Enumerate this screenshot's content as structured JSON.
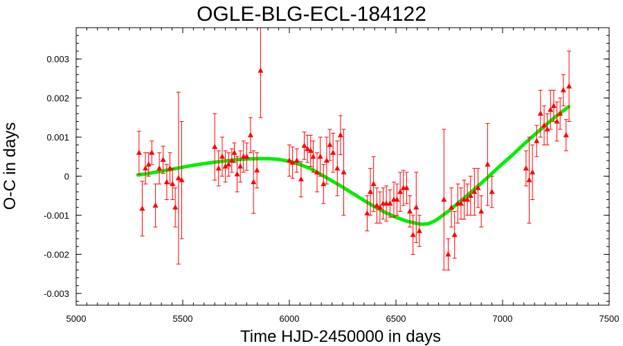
{
  "chart_data": {
    "type": "scatter",
    "title": "OGLE-BLG-ECL-184122",
    "xlabel": "Time HJD-2450000 in days",
    "ylabel": "O-C in days",
    "xlim": [
      5000,
      7500
    ],
    "ylim": [
      -0.0033,
      0.0038
    ],
    "xticks": [
      5000,
      5500,
      6000,
      6500,
      7000,
      7500
    ],
    "xtick_labels": [
      "5000",
      "5500",
      "6000",
      "6500",
      "7000",
      "7500"
    ],
    "yticks": [
      -0.003,
      -0.002,
      -0.001,
      0,
      0.001,
      0.002,
      0.003
    ],
    "ytick_labels": [
      "-0.003",
      "-0.002",
      "-0.001",
      "0",
      "0.001",
      "0.002",
      "0.003"
    ],
    "grid": false,
    "point_color": "#ff0000",
    "fit_color": "#00ee00",
    "points": [
      {
        "x": 5295,
        "y": 0.0006,
        "err": 0.00055
      },
      {
        "x": 5310,
        "y": -0.00083,
        "err": 0.0007
      },
      {
        "x": 5325,
        "y": 0.0002,
        "err": 0.0004
      },
      {
        "x": 5340,
        "y": 0.0003,
        "err": 0.0003
      },
      {
        "x": 5355,
        "y": 0.0006,
        "err": 0.0003
      },
      {
        "x": 5372,
        "y": -0.00075,
        "err": 0.00055
      },
      {
        "x": 5390,
        "y": 0.0002,
        "err": 0.0004
      },
      {
        "x": 5408,
        "y": 0.00042,
        "err": 0.00035
      },
      {
        "x": 5425,
        "y": -0.00015,
        "err": 0.00045
      },
      {
        "x": 5440,
        "y": 0.0002,
        "err": 0.0004
      },
      {
        "x": 5452,
        "y": -0.0002,
        "err": 0.0004
      },
      {
        "x": 5465,
        "y": -0.0008,
        "err": 0.0005
      },
      {
        "x": 5480,
        "y": -5e-05,
        "err": 0.0022
      },
      {
        "x": 5495,
        "y": -0.0001,
        "err": 0.0015
      },
      {
        "x": 5650,
        "y": 0.00075,
        "err": 0.00085
      },
      {
        "x": 5668,
        "y": 0.0002,
        "err": 0.00045
      },
      {
        "x": 5685,
        "y": 0.0005,
        "err": 0.0005
      },
      {
        "x": 5700,
        "y": 0.00025,
        "err": 0.0004
      },
      {
        "x": 5715,
        "y": 0.0003,
        "err": 0.0003
      },
      {
        "x": 5730,
        "y": 0.0004,
        "err": 0.0003
      },
      {
        "x": 5742,
        "y": 0.0006,
        "err": 0.00025
      },
      {
        "x": 5755,
        "y": 5e-05,
        "err": 0.00045
      },
      {
        "x": 5770,
        "y": 0.00025,
        "err": 0.0004
      },
      {
        "x": 5785,
        "y": 0.0005,
        "err": 0.0004
      },
      {
        "x": 5800,
        "y": 0.0005,
        "err": 0.00035
      },
      {
        "x": 5818,
        "y": 0.00105,
        "err": 0.00045
      },
      {
        "x": 5832,
        "y": -0.00015,
        "err": 0.0008
      },
      {
        "x": 5848,
        "y": 0.00015,
        "err": 0.00045
      },
      {
        "x": 5865,
        "y": 0.0027,
        "err": 0.0012
      },
      {
        "x": 6000,
        "y": 0.0004,
        "err": 0.0004
      },
      {
        "x": 6015,
        "y": 0.00035,
        "err": 0.0004
      },
      {
        "x": 6035,
        "y": 0.0004,
        "err": 0.0003
      },
      {
        "x": 6055,
        "y": -8e-05,
        "err": 0.00045
      },
      {
        "x": 6070,
        "y": 0.00078,
        "err": 0.00035
      },
      {
        "x": 6085,
        "y": 0.0007,
        "err": 0.00035
      },
      {
        "x": 6100,
        "y": 0.00065,
        "err": 0.0004
      },
      {
        "x": 6112,
        "y": 0.0005,
        "err": 0.0004
      },
      {
        "x": 6130,
        "y": 0.0001,
        "err": 0.0005
      },
      {
        "x": 6145,
        "y": 0.0005,
        "err": 0.0005
      },
      {
        "x": 6160,
        "y": -0.0002,
        "err": 0.0005
      },
      {
        "x": 6175,
        "y": 0.0004,
        "err": 0.0006
      },
      {
        "x": 6190,
        "y": 0.0008,
        "err": 0.0004
      },
      {
        "x": 6205,
        "y": 0.0006,
        "err": 0.0005
      },
      {
        "x": 6225,
        "y": 0.0002,
        "err": 0.0007
      },
      {
        "x": 6240,
        "y": 0.00105,
        "err": 0.0005
      },
      {
        "x": 6255,
        "y": 0.0001,
        "err": 0.0011
      },
      {
        "x": 6365,
        "y": -0.00095,
        "err": 0.00045
      },
      {
        "x": 6380,
        "y": -0.0004,
        "err": 0.0006
      },
      {
        "x": 6395,
        "y": -0.0002,
        "err": 0.0007
      },
      {
        "x": 6410,
        "y": -0.00075,
        "err": 0.00045
      },
      {
        "x": 6425,
        "y": -0.0008,
        "err": 0.0004
      },
      {
        "x": 6440,
        "y": -0.0007,
        "err": 0.0004
      },
      {
        "x": 6455,
        "y": -0.0007,
        "err": 0.00045
      },
      {
        "x": 6472,
        "y": -0.0007,
        "err": 0.00035
      },
      {
        "x": 6490,
        "y": -0.0006,
        "err": 0.00045
      },
      {
        "x": 6505,
        "y": -0.0006,
        "err": 0.0004
      },
      {
        "x": 6520,
        "y": -0.0004,
        "err": 0.0005
      },
      {
        "x": 6535,
        "y": -0.0003,
        "err": 0.00045
      },
      {
        "x": 6550,
        "y": -0.0003,
        "err": 0.0004
      },
      {
        "x": 6565,
        "y": -0.0009,
        "err": 0.0004
      },
      {
        "x": 6580,
        "y": -0.0015,
        "err": 0.0005
      },
      {
        "x": 6595,
        "y": -0.0008,
        "err": 0.0009
      },
      {
        "x": 6610,
        "y": -0.0014,
        "err": 0.0004
      },
      {
        "x": 6725,
        "y": -0.0006,
        "err": 0.0018
      },
      {
        "x": 6745,
        "y": -0.002,
        "err": 0.0004
      },
      {
        "x": 6760,
        "y": -0.0008,
        "err": 0.0005
      },
      {
        "x": 6775,
        "y": -0.0015,
        "err": 0.0006
      },
      {
        "x": 6790,
        "y": -0.0007,
        "err": 0.0005
      },
      {
        "x": 6805,
        "y": -0.0007,
        "err": 0.0004
      },
      {
        "x": 6820,
        "y": -0.0006,
        "err": 0.0005
      },
      {
        "x": 6835,
        "y": -0.0006,
        "err": 0.0004
      },
      {
        "x": 6850,
        "y": -0.0005,
        "err": 0.0005
      },
      {
        "x": 6868,
        "y": -0.0004,
        "err": 0.0006
      },
      {
        "x": 6885,
        "y": -0.0003,
        "err": 0.0005
      },
      {
        "x": 6900,
        "y": -0.0009,
        "err": 0.0004
      },
      {
        "x": 6930,
        "y": 0.0003,
        "err": 0.00105
      },
      {
        "x": 6950,
        "y": -0.0004,
        "err": 0.0004
      },
      {
        "x": 7110,
        "y": 0.0002,
        "err": 0.00045
      },
      {
        "x": 7125,
        "y": -0.0001,
        "err": 0.0011
      },
      {
        "x": 7140,
        "y": 0.0001,
        "err": 0.0007
      },
      {
        "x": 7160,
        "y": 0.0009,
        "err": 0.0004
      },
      {
        "x": 7178,
        "y": 0.0016,
        "err": 0.0006
      },
      {
        "x": 7195,
        "y": 0.0013,
        "err": 0.0005
      },
      {
        "x": 7210,
        "y": 0.0012,
        "err": 0.0004
      },
      {
        "x": 7225,
        "y": 0.0017,
        "err": 0.0005
      },
      {
        "x": 7240,
        "y": 0.0018,
        "err": 0.0004
      },
      {
        "x": 7255,
        "y": 0.0014,
        "err": 0.0005
      },
      {
        "x": 7270,
        "y": 0.0016,
        "err": 0.0004
      },
      {
        "x": 7285,
        "y": 0.0022,
        "err": 0.0004
      },
      {
        "x": 7298,
        "y": 0.00105,
        "err": 0.0004
      },
      {
        "x": 7312,
        "y": 0.0023,
        "err": 0.0009
      }
    ],
    "fit": {
      "x": [
        5290,
        5350,
        5400,
        5450,
        5500,
        5550,
        5600,
        5650,
        5700,
        5750,
        5800,
        5850,
        5900,
        5950,
        6000,
        6050,
        6100,
        6150,
        6200,
        6250,
        6300,
        6350,
        6400,
        6450,
        6500,
        6550,
        6600,
        6620,
        6650,
        6680,
        6700,
        6750,
        6800,
        6850,
        6900,
        6950,
        7000,
        7050,
        7100,
        7150,
        7200,
        7250,
        7310
      ],
      "y": [
        3e-05,
        8e-05,
        0.00013,
        0.00018,
        0.00023,
        0.00028,
        0.00032,
        0.00036,
        0.00039,
        0.00042,
        0.00044,
        0.00045,
        0.00045,
        0.00043,
        0.00038,
        0.0003,
        0.00019,
        4e-05,
        -0.00012,
        -0.00028,
        -0.00045,
        -0.00062,
        -0.00078,
        -0.00093,
        -0.00105,
        -0.00115,
        -0.00121,
        -0.00123,
        -0.00122,
        -0.00115,
        -0.00108,
        -0.00088,
        -0.00065,
        -0.00042,
        -0.00018,
        7e-05,
        0.00032,
        0.00056,
        0.00082,
        0.00106,
        0.0013,
        0.00153,
        0.00178
      ]
    }
  }
}
